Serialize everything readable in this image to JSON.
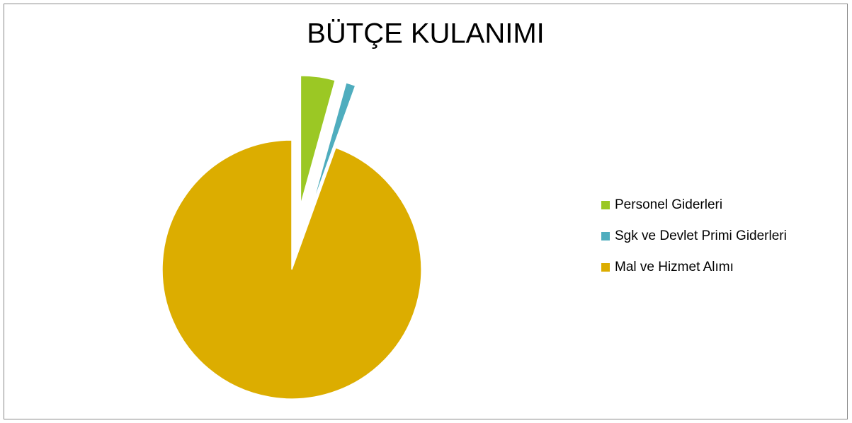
{
  "chart_data": {
    "type": "pie",
    "title": "BÜTÇE KULANIMI",
    "categories": [
      "Personel Giderleri",
      "Sgk ve Devlet Primi Giderleri",
      "Mal ve Hizmet Alımı"
    ],
    "values": [
      4.3,
      1.2,
      94.5
    ],
    "colors": [
      "#9bc824",
      "#4fadbe",
      "#dcad00"
    ],
    "legend": "right"
  }
}
